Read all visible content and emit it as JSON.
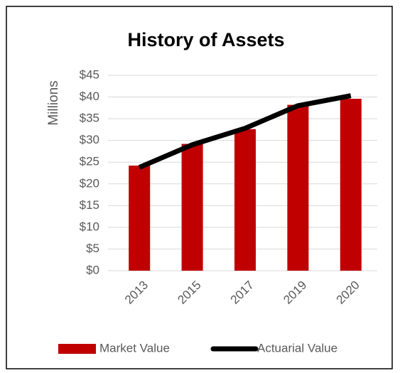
{
  "chart_data": {
    "type": "combo",
    "title": "History of Assets",
    "y_label": "Millions",
    "categories": [
      "2013",
      "2015",
      "2017",
      "2019",
      "2020"
    ],
    "series": [
      {
        "name": "Market Value",
        "type": "bar",
        "color": "#c00000",
        "values": [
          24.2,
          29.2,
          32.6,
          38.2,
          39.6
        ]
      },
      {
        "name": "Actuarial Value",
        "type": "line",
        "color": "#000000",
        "values": [
          23.8,
          29,
          32.8,
          38,
          40.3
        ]
      }
    ],
    "ylim": [
      0,
      45
    ],
    "yticks": [
      {
        "value": 0,
        "label": "$0"
      },
      {
        "value": 5,
        "label": "$5"
      },
      {
        "value": 10,
        "label": "$10"
      },
      {
        "value": 15,
        "label": "$15"
      },
      {
        "value": 20,
        "label": "$20"
      },
      {
        "value": 25,
        "label": "$25"
      },
      {
        "value": 30,
        "label": "$30"
      },
      {
        "value": 35,
        "label": "$35"
      },
      {
        "value": 40,
        "label": "$40"
      },
      {
        "value": 45,
        "label": "$45"
      }
    ],
    "grid": true,
    "legend": "bottom"
  }
}
